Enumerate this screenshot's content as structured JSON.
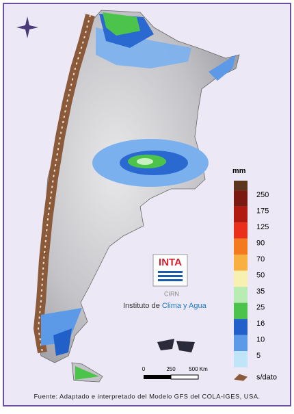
{
  "legend": {
    "title": "mm",
    "top_color": "#5a3520",
    "items": [
      {
        "label": 250,
        "color": "#7a1a10"
      },
      {
        "label": 175,
        "color": "#b01a10"
      },
      {
        "label": 125,
        "color": "#e8301a"
      },
      {
        "label": 90,
        "color": "#f47a20"
      },
      {
        "label": 70,
        "color": "#f8b040"
      },
      {
        "label": 50,
        "color": "#f8f0b0"
      },
      {
        "label": 35,
        "color": "#b8ecb0"
      },
      {
        "label": 25,
        "color": "#4cc44c"
      },
      {
        "label": 16,
        "color": "#2060c8"
      },
      {
        "label": 10,
        "color": "#5c9ae8"
      },
      {
        "label": 5,
        "color": "#c0e4f8"
      }
    ],
    "no_data": "s/dato"
  },
  "scale_bar": {
    "labels": [
      "0",
      "250",
      "500 Km"
    ]
  },
  "logo": {
    "name": "INTA",
    "sub": "CIRN",
    "institute": "Instituto de",
    "institute_highlight": "Clima y Agua"
  },
  "footer": "Fuente: Adaptado e interpretado del Modelo GFS del COLA-IGES, USA."
}
